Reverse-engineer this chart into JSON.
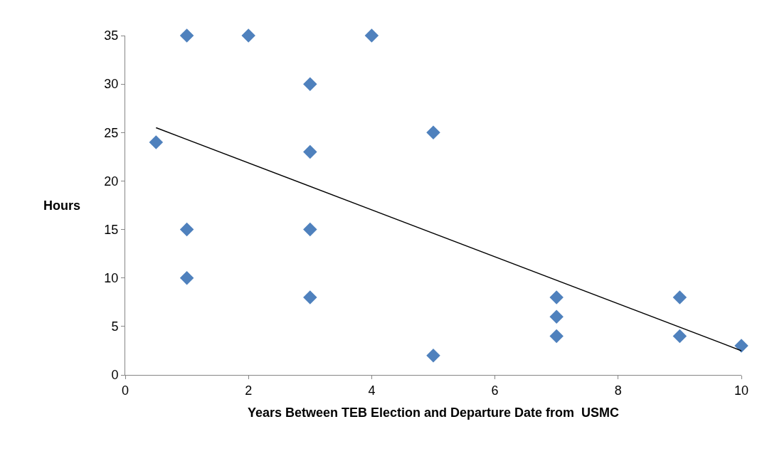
{
  "chart_data": {
    "type": "scatter",
    "xlabel": "Years Between TEB Election and Departure Date from  USMC",
    "ylabel": "Hours",
    "xlim": [
      0,
      10
    ],
    "xticks": [
      0,
      2,
      4,
      6,
      8,
      10
    ],
    "ylim": [
      0,
      35
    ],
    "yticks": [
      0,
      5,
      10,
      15,
      20,
      25,
      30,
      35
    ],
    "marker": "diamond",
    "series": [
      {
        "color": "#4f81bd",
        "x": [
          0.5,
          1,
          1,
          1,
          2,
          3,
          3,
          3,
          3,
          4,
          5,
          5,
          7,
          7,
          7,
          9,
          9,
          10
        ],
        "values": [
          24,
          35,
          15,
          10,
          35,
          30,
          23,
          15,
          8,
          35,
          25,
          2,
          8,
          6,
          4,
          8,
          4,
          3
        ]
      },
      {
        "type": "line",
        "marker": "none",
        "color": "#000000",
        "x": [
          0.5,
          10
        ],
        "values": [
          25.5,
          2.5
        ]
      }
    ]
  }
}
